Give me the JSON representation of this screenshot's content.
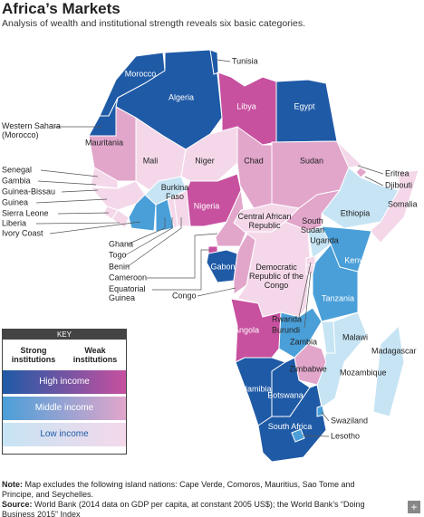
{
  "header": {
    "title": "Africa’s Markets",
    "subtitle": "Analysis of wealth and institutional strength reveals six basic categories."
  },
  "countries": [
    {
      "label": "Morocco",
      "color": "#1f5aa6"
    },
    {
      "label": "Western Sahara (Morocco)",
      "color": "#1f5aa6"
    },
    {
      "label": "Algeria",
      "color": "#1f5aa6"
    },
    {
      "label": "Tunisia",
      "color": "#1f5aa6"
    },
    {
      "label": "Libya",
      "color": "#c7509f"
    },
    {
      "label": "Egypt",
      "color": "#1f5aa6"
    },
    {
      "label": "Mauritania",
      "color": "#e2a6cb"
    },
    {
      "label": "Mali",
      "color": "#f4d8ea"
    },
    {
      "label": "Niger",
      "color": "#f4d8ea"
    },
    {
      "label": "Chad",
      "color": "#e2a6cb"
    },
    {
      "label": "Sudan",
      "color": "#e2a6cb"
    },
    {
      "label": "Eritrea",
      "color": "#f4d8ea"
    },
    {
      "label": "Djibouti",
      "color": "#e2a6cb"
    },
    {
      "label": "Somalia",
      "color": "#f4d8ea"
    },
    {
      "label": "Ethiopia",
      "color": "#c6e4f4"
    },
    {
      "label": "Senegal",
      "color": "#f4d8ea"
    },
    {
      "label": "Gambia",
      "color": "#f4d8ea"
    },
    {
      "label": "Guinea-Bissau",
      "color": "#f4d8ea"
    },
    {
      "label": "Guinea",
      "color": "#f4d8ea"
    },
    {
      "label": "Sierra Leone",
      "color": "#f4d8ea"
    },
    {
      "label": "Liberia",
      "color": "#f4d8ea"
    },
    {
      "label": "Ivory Coast",
      "color": "#4a9fd8"
    },
    {
      "label": "Burkina Faso",
      "color": "#c6e4f4"
    },
    {
      "label": "Ghana",
      "color": "#4a9fd8"
    },
    {
      "label": "Togo",
      "color": "#f4d8ea"
    },
    {
      "label": "Benin",
      "color": "#f4d8ea"
    },
    {
      "label": "Nigeria",
      "color": "#c7509f"
    },
    {
      "label": "Cameroon",
      "color": "#e2a6cb"
    },
    {
      "label": "Equatorial Guinea",
      "color": "#c7509f"
    },
    {
      "label": "Gabon",
      "color": "#1f5aa6"
    },
    {
      "label": "Congo",
      "color": "#e2a6cb"
    },
    {
      "label": "Central African Republic",
      "color": "#f4d8ea"
    },
    {
      "label": "South Sudan",
      "color": "#e2a6cb"
    },
    {
      "label": "Democratic Republic of the Congo",
      "color": "#f4d8ea"
    },
    {
      "label": "Uganda",
      "color": "#c6e4f4"
    },
    {
      "label": "Kenya",
      "color": "#4a9fd8"
    },
    {
      "label": "Rwanda",
      "color": "#f4d8ea"
    },
    {
      "label": "Burundi",
      "color": "#f4d8ea"
    },
    {
      "label": "Tanzania",
      "color": "#4a9fd8"
    },
    {
      "label": "Angola",
      "color": "#c7509f"
    },
    {
      "label": "Zambia",
      "color": "#4a9fd8"
    },
    {
      "label": "Malawi",
      "color": "#c6e4f4"
    },
    {
      "label": "Mozambique",
      "color": "#c6e4f4"
    },
    {
      "label": "Zimbabwe",
      "color": "#e2a6cb"
    },
    {
      "label": "Namibia",
      "color": "#1f5aa6"
    },
    {
      "label": "Botswana",
      "color": "#1f5aa6"
    },
    {
      "label": "South Africa",
      "color": "#1f5aa6"
    },
    {
      "label": "Swaziland",
      "color": "#4a9fd8"
    },
    {
      "label": "Lesotho",
      "color": "#4a9fd8"
    },
    {
      "label": "Madagascar",
      "color": "#c6e4f4"
    }
  ],
  "key": {
    "title": "KEY",
    "columns": [
      "Strong institutions",
      "Weak institutions"
    ],
    "rows": [
      {
        "label": "High income",
        "colors": [
          "#1f5aa6",
          "#c7509f"
        ]
      },
      {
        "label": "Middle income",
        "colors": [
          "#4a9fd8",
          "#e2a6cb"
        ]
      },
      {
        "label": "Low income",
        "colors": [
          "#c6e4f4",
          "#f4d8ea"
        ]
      }
    ]
  },
  "note": {
    "label": "Note:",
    "text": "Map excludes the following island nations: Cape Verde, Comoros, Mauritius, Sao Tome and Principe, and Seychelles."
  },
  "source": {
    "label": "Source:",
    "text": "World Bank (2014 data on GDP per capita, at constant 2005 US$); the World Bank’s “Doing Business 2015” Index"
  },
  "button": "+"
}
